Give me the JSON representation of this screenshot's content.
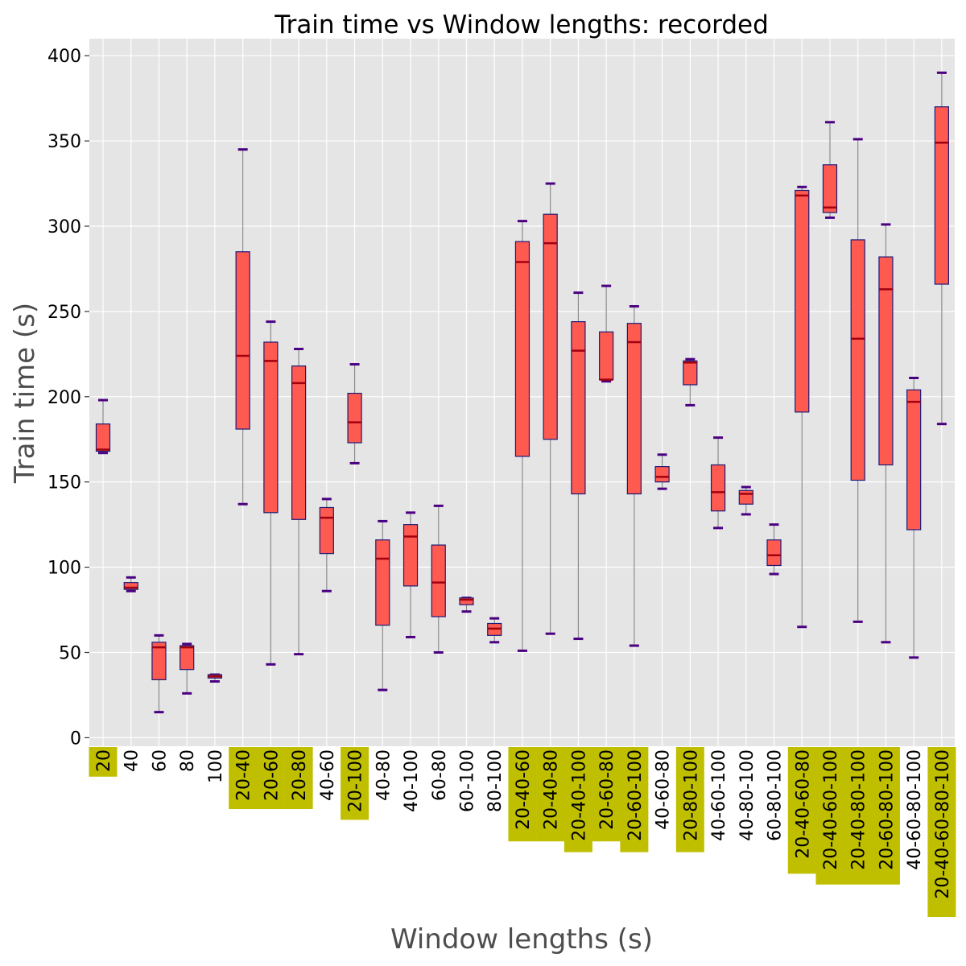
{
  "chart_data": {
    "type": "box",
    "title": "Train time vs Window lengths: recorded",
    "xlabel": "Window lengths (s)",
    "ylabel": "Train time (s)",
    "ylim": [
      -5,
      410
    ],
    "yticks": [
      0,
      50,
      100,
      150,
      200,
      250,
      300,
      350,
      400
    ],
    "grid": true,
    "colors": {
      "background": "#e5e5e5",
      "grid": "#ffffff",
      "box_fill": "#ff5a50",
      "box_edge": "#1a1a7a",
      "median": "#a00010",
      "whisker": "#8a8a8a",
      "cap": "#4b0082",
      "highlight": "#bfbf00"
    },
    "categories": [
      {
        "label": "20",
        "highlight": true,
        "min": 167,
        "q1": 168,
        "median": 169,
        "q3": 184,
        "max": 198
      },
      {
        "label": "40",
        "highlight": false,
        "min": 86,
        "q1": 87,
        "median": 88,
        "q3": 91,
        "max": 94
      },
      {
        "label": "60",
        "highlight": false,
        "min": 15,
        "q1": 34,
        "median": 53,
        "q3": 56,
        "max": 60
      },
      {
        "label": "80",
        "highlight": false,
        "min": 26,
        "q1": 40,
        "median": 53,
        "q3": 54,
        "max": 55
      },
      {
        "label": "100",
        "highlight": false,
        "min": 33,
        "q1": 35,
        "median": 36,
        "q3": 37,
        "max": 37
      },
      {
        "label": "20-40",
        "highlight": true,
        "min": 137,
        "q1": 181,
        "median": 224,
        "q3": 285,
        "max": 345
      },
      {
        "label": "20-60",
        "highlight": true,
        "min": 43,
        "q1": 132,
        "median": 221,
        "q3": 232,
        "max": 244
      },
      {
        "label": "20-80",
        "highlight": true,
        "min": 49,
        "q1": 128,
        "median": 208,
        "q3": 218,
        "max": 228
      },
      {
        "label": "40-60",
        "highlight": false,
        "min": 86,
        "q1": 108,
        "median": 129,
        "q3": 135,
        "max": 140
      },
      {
        "label": "20-100",
        "highlight": true,
        "min": 161,
        "q1": 173,
        "median": 185,
        "q3": 202,
        "max": 219
      },
      {
        "label": "40-80",
        "highlight": false,
        "min": 28,
        "q1": 66,
        "median": 105,
        "q3": 116,
        "max": 127
      },
      {
        "label": "40-100",
        "highlight": false,
        "min": 59,
        "q1": 89,
        "median": 118,
        "q3": 125,
        "max": 132
      },
      {
        "label": "60-80",
        "highlight": false,
        "min": 50,
        "q1": 71,
        "median": 91,
        "q3": 113,
        "max": 136
      },
      {
        "label": "60-100",
        "highlight": false,
        "min": 74,
        "q1": 78,
        "median": 81,
        "q3": 82,
        "max": 82
      },
      {
        "label": "80-100",
        "highlight": false,
        "min": 56,
        "q1": 60,
        "median": 64,
        "q3": 67,
        "max": 70
      },
      {
        "label": "20-40-60",
        "highlight": true,
        "min": 51,
        "q1": 165,
        "median": 279,
        "q3": 291,
        "max": 303
      },
      {
        "label": "20-40-80",
        "highlight": true,
        "min": 61,
        "q1": 175,
        "median": 290,
        "q3": 307,
        "max": 325
      },
      {
        "label": "20-40-100",
        "highlight": true,
        "min": 58,
        "q1": 143,
        "median": 227,
        "q3": 244,
        "max": 261
      },
      {
        "label": "20-60-80",
        "highlight": true,
        "min": 209,
        "q1": 210,
        "median": 210,
        "q3": 238,
        "max": 265
      },
      {
        "label": "20-60-100",
        "highlight": true,
        "min": 54,
        "q1": 143,
        "median": 232,
        "q3": 243,
        "max": 253
      },
      {
        "label": "40-60-80",
        "highlight": false,
        "min": 146,
        "q1": 150,
        "median": 153,
        "q3": 159,
        "max": 166
      },
      {
        "label": "20-80-100",
        "highlight": true,
        "min": 195,
        "q1": 207,
        "median": 220,
        "q3": 221,
        "max": 222
      },
      {
        "label": "40-60-100",
        "highlight": false,
        "min": 123,
        "q1": 133,
        "median": 144,
        "q3": 160,
        "max": 176
      },
      {
        "label": "40-80-100",
        "highlight": false,
        "min": 131,
        "q1": 137,
        "median": 143,
        "q3": 145,
        "max": 147
      },
      {
        "label": "60-80-100",
        "highlight": false,
        "min": 96,
        "q1": 101,
        "median": 107,
        "q3": 116,
        "max": 125
      },
      {
        "label": "20-40-60-80",
        "highlight": true,
        "min": 65,
        "q1": 191,
        "median": 318,
        "q3": 321,
        "max": 323
      },
      {
        "label": "20-40-60-100",
        "highlight": true,
        "min": 305,
        "q1": 308,
        "median": 311,
        "q3": 336,
        "max": 361
      },
      {
        "label": "20-40-80-100",
        "highlight": true,
        "min": 68,
        "q1": 151,
        "median": 234,
        "q3": 292,
        "max": 351
      },
      {
        "label": "20-60-80-100",
        "highlight": true,
        "min": 56,
        "q1": 160,
        "median": 263,
        "q3": 282,
        "max": 301
      },
      {
        "label": "40-60-80-100",
        "highlight": false,
        "min": 47,
        "q1": 122,
        "median": 197,
        "q3": 204,
        "max": 211
      },
      {
        "label": "20-40-60-80-100",
        "highlight": true,
        "min": 184,
        "q1": 266,
        "median": 349,
        "q3": 370,
        "max": 390
      }
    ]
  }
}
